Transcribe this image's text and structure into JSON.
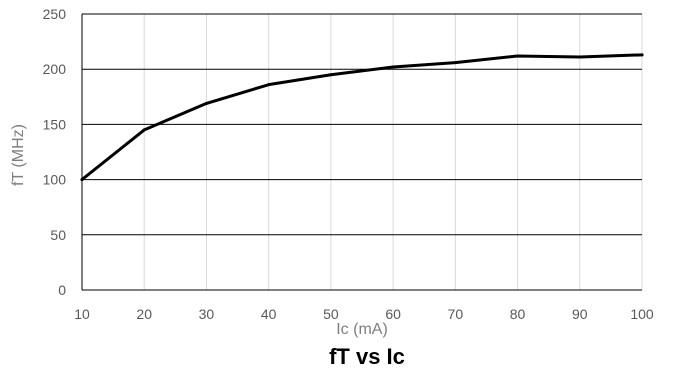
{
  "chart_data": {
    "type": "line",
    "title": "fT vs Ic",
    "xlabel": "Ic (mA)",
    "ylabel": "fT (MHz)",
    "x": [
      10,
      20,
      30,
      40,
      50,
      60,
      70,
      80,
      90,
      100
    ],
    "series": [
      {
        "values": [
          100,
          145,
          169,
          186,
          195,
          202,
          206,
          212,
          211,
          213
        ]
      }
    ],
    "xlim": [
      10,
      100
    ],
    "ylim": [
      0,
      250
    ],
    "xticks": [
      "10",
      "20",
      "30",
      "40",
      "50",
      "60",
      "70",
      "80",
      "90",
      "100"
    ],
    "yticks": [
      "0",
      "50",
      "100",
      "150",
      "200",
      "250"
    ],
    "grid": "on",
    "legend": "none",
    "colors": {
      "line": "#000000",
      "h_grid": "#000000",
      "v_grid": "#d9d9d9"
    }
  }
}
